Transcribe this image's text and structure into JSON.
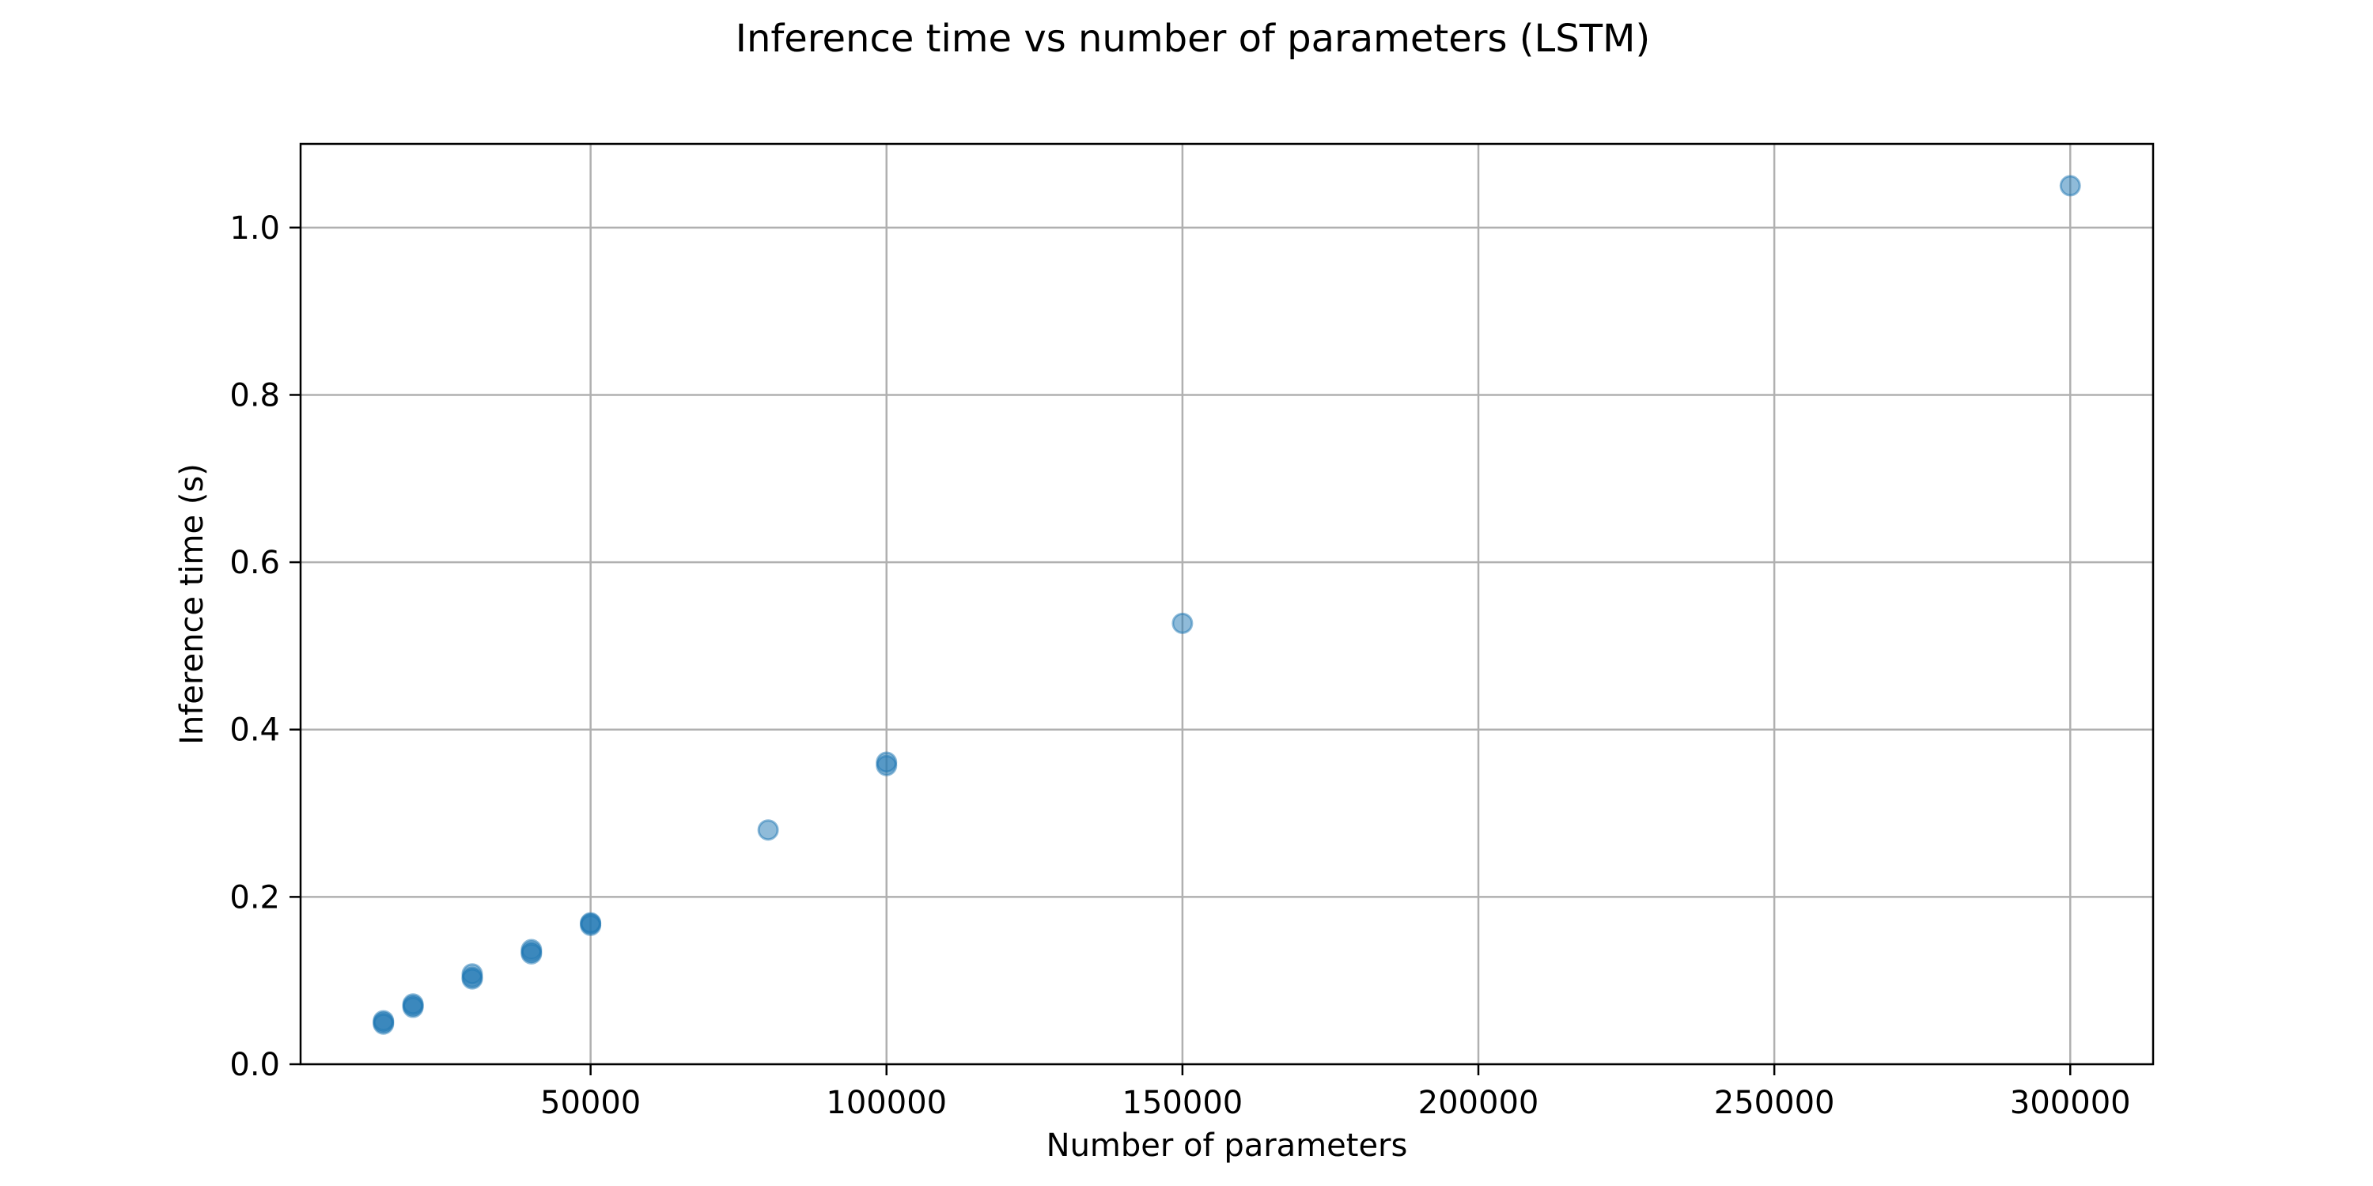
{
  "chart_data": {
    "type": "scatter",
    "title": "Inference time vs number of parameters (LSTM)",
    "xlabel": "Number of parameters",
    "ylabel": "Inference time (s)",
    "xlim": [
      1000,
      314000
    ],
    "ylim": [
      0,
      1.1
    ],
    "xticks": [
      50000,
      100000,
      150000,
      200000,
      250000,
      300000
    ],
    "xtick_labels": [
      "50000",
      "100000",
      "150000",
      "200000",
      "250000",
      "300000"
    ],
    "yticks": [
      0.0,
      0.2,
      0.4,
      0.6,
      0.8,
      1.0
    ],
    "ytick_labels": [
      "0.0",
      "0.2",
      "0.4",
      "0.6",
      "0.8",
      "1.0"
    ],
    "grid": true,
    "marker_color": "#1f77b4",
    "marker_alpha": 0.5,
    "series": [
      {
        "points": [
          {
            "x": 15000,
            "y": 0.048
          },
          {
            "x": 15000,
            "y": 0.052
          },
          {
            "x": 15000,
            "y": 0.05
          },
          {
            "x": 20000,
            "y": 0.068
          },
          {
            "x": 20000,
            "y": 0.072
          },
          {
            "x": 20000,
            "y": 0.07
          },
          {
            "x": 30000,
            "y": 0.102
          },
          {
            "x": 30000,
            "y": 0.108
          },
          {
            "x": 30000,
            "y": 0.104
          },
          {
            "x": 40000,
            "y": 0.132
          },
          {
            "x": 40000,
            "y": 0.137
          },
          {
            "x": 40000,
            "y": 0.134
          },
          {
            "x": 50000,
            "y": 0.166
          },
          {
            "x": 50000,
            "y": 0.169
          },
          {
            "x": 50000,
            "y": 0.168
          },
          {
            "x": 80000,
            "y": 0.28
          },
          {
            "x": 100000,
            "y": 0.357
          },
          {
            "x": 100000,
            "y": 0.361
          },
          {
            "x": 150000,
            "y": 0.527
          },
          {
            "x": 300000,
            "y": 1.05
          }
        ]
      }
    ]
  }
}
